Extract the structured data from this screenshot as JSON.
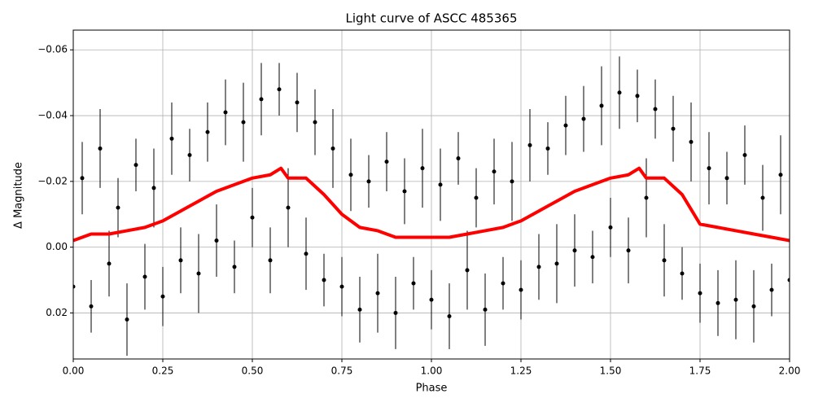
{
  "chart_data": {
    "type": "scatter",
    "title": "Light curve of ASCC 485365",
    "xlabel": "Phase",
    "ylabel": "Δ Magnitude",
    "xlim": [
      0,
      2
    ],
    "ylim": [
      -0.066,
      0.034
    ],
    "y_inverted": true,
    "grid": true,
    "xticks": [
      {
        "value": 0,
        "label": "0.00"
      },
      0.25,
      {
        "value": 0.5,
        "label": "0.50"
      },
      0.75,
      {
        "value": 1,
        "label": "1.00"
      },
      1.25,
      {
        "value": 1.5,
        "label": "1.50"
      },
      1.75,
      {
        "value": 2,
        "label": "2.00"
      }
    ],
    "yticks": [
      {
        "value": -0.06,
        "label": "−0.06"
      },
      {
        "value": -0.04,
        "label": "−0.04"
      },
      {
        "value": -0.02,
        "label": "−0.02"
      },
      {
        "value": 0,
        "label": "0.00"
      },
      0.02
    ],
    "series": [
      {
        "type": "errorbar",
        "color": "#000000",
        "x": [
          0,
          0.025,
          0.05,
          0.075,
          0.1,
          0.125,
          0.15,
          0.175,
          0.2,
          0.225,
          0.25,
          0.275,
          0.3,
          0.325,
          0.35,
          0.375,
          0.4,
          0.425,
          0.45,
          0.475,
          0.5,
          0.525,
          0.55,
          0.575,
          0.6,
          0.625,
          0.65,
          0.675,
          0.7,
          0.725,
          0.75,
          0.775,
          0.8,
          0.825,
          0.85,
          0.875,
          0.9,
          0.925,
          0.95,
          0.975,
          1,
          1.025,
          1.05,
          1.075,
          1.1,
          1.125,
          1.15,
          1.175,
          1.2,
          1.225,
          1.25,
          1.275,
          1.3,
          1.325,
          1.35,
          1.375,
          1.4,
          1.425,
          1.45,
          1.475,
          1.5,
          1.525,
          1.55,
          1.575,
          1.6,
          1.625,
          1.65,
          1.675,
          1.7,
          1.725,
          1.75,
          1.775,
          1.8,
          1.825,
          1.85,
          1.875,
          1.9,
          1.925,
          1.95,
          1.975,
          2
        ],
        "values": [
          0.012,
          -0.021,
          0.018,
          -0.03,
          0.005,
          -0.012,
          0.022,
          -0.025,
          0.009,
          -0.018,
          0.015,
          -0.033,
          0.004,
          -0.028,
          0.008,
          -0.035,
          -0.002,
          -0.041,
          0.006,
          -0.038,
          -0.009,
          -0.045,
          0.004,
          -0.048,
          -0.012,
          -0.044,
          0.002,
          -0.038,
          0.01,
          -0.03,
          0.012,
          -0.022,
          0.019,
          -0.02,
          0.014,
          -0.026,
          0.02,
          -0.017,
          0.011,
          -0.024,
          0.016,
          -0.019,
          0.021,
          -0.027,
          0.007,
          -0.015,
          0.019,
          -0.023,
          0.011,
          -0.02,
          0.013,
          -0.031,
          0.006,
          -0.03,
          0.005,
          -0.037,
          0.001,
          -0.039,
          0.003,
          -0.043,
          -0.006,
          -0.047,
          0.001,
          -0.046,
          -0.015,
          -0.042,
          0.004,
          -0.036,
          0.008,
          -0.032,
          0.014,
          -0.024,
          0.017,
          -0.021,
          0.016,
          -0.028,
          0.018,
          -0.015,
          0.013,
          -0.022,
          0.01
        ],
        "errors": [
          0.009,
          0.011,
          0.008,
          0.012,
          0.01,
          0.009,
          0.011,
          0.008,
          0.01,
          0.012,
          0.009,
          0.011,
          0.01,
          0.008,
          0.012,
          0.009,
          0.011,
          0.01,
          0.008,
          0.012,
          0.009,
          0.011,
          0.01,
          0.008,
          0.012,
          0.009,
          0.011,
          0.01,
          0.008,
          0.012,
          0.009,
          0.011,
          0.01,
          0.008,
          0.012,
          0.009,
          0.011,
          0.01,
          0.008,
          0.012,
          0.009,
          0.011,
          0.01,
          0.008,
          0.012,
          0.009,
          0.011,
          0.01,
          0.008,
          0.012,
          0.009,
          0.011,
          0.01,
          0.008,
          0.012,
          0.009,
          0.011,
          0.01,
          0.008,
          0.012,
          0.009,
          0.011,
          0.01,
          0.008,
          0.012,
          0.009,
          0.011,
          0.01,
          0.008,
          0.012,
          0.009,
          0.011,
          0.01,
          0.008,
          0.012,
          0.009,
          0.011,
          0.01,
          0.008,
          0.012,
          0.009
        ]
      },
      {
        "type": "line",
        "color": "#ff0000",
        "x": [
          0,
          0.05,
          0.1,
          0.15,
          0.2,
          0.25,
          0.3,
          0.35,
          0.4,
          0.45,
          0.5,
          0.55,
          0.58,
          0.6,
          0.65,
          0.7,
          0.75,
          0.8,
          0.85,
          0.9,
          0.95,
          1,
          1.05,
          1.1,
          1.15,
          1.2,
          1.25,
          1.3,
          1.35,
          1.4,
          1.45,
          1.5,
          1.55,
          1.58,
          1.6,
          1.65,
          1.7,
          1.75,
          1.8,
          1.85,
          1.9,
          1.95,
          2
        ],
        "values": [
          -0.002,
          -0.004,
          -0.004,
          -0.005,
          -0.006,
          -0.008,
          -0.011,
          -0.014,
          -0.017,
          -0.019,
          -0.021,
          -0.022,
          -0.024,
          -0.021,
          -0.021,
          -0.016,
          -0.01,
          -0.006,
          -0.005,
          -0.003,
          -0.003,
          -0.003,
          -0.003,
          -0.004,
          -0.005,
          -0.006,
          -0.008,
          -0.011,
          -0.014,
          -0.017,
          -0.019,
          -0.021,
          -0.022,
          -0.024,
          -0.021,
          -0.021,
          -0.016,
          -0.007,
          -0.006,
          -0.005,
          -0.004,
          -0.003,
          -0.002
        ]
      }
    ]
  }
}
